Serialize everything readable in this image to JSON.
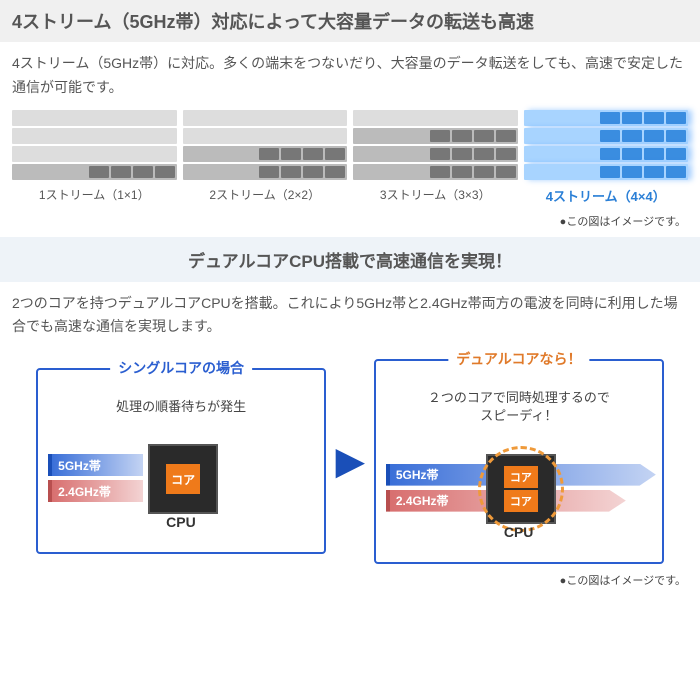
{
  "section1": {
    "title": "4ストリーム（5GHz帯）対応によって大容量データの転送も高速",
    "desc": "4ストリーム（5GHz帯）に対応。多くの端末をつないだり、大容量のデータ転送をしても、高速で安定した通信が可能です。",
    "streams": [
      {
        "label": "1ストリーム（1×1）",
        "lanes": 4,
        "active": 1,
        "trucks_per_lane": 4,
        "highlight": false
      },
      {
        "label": "2ストリーム（2×2）",
        "lanes": 4,
        "active": 2,
        "trucks_per_lane": 4,
        "highlight": false
      },
      {
        "label": "3ストリーム（3×3）",
        "lanes": 4,
        "active": 3,
        "trucks_per_lane": 4,
        "highlight": false
      },
      {
        "label": "4ストリーム（4×4）",
        "lanes": 4,
        "active": 4,
        "trucks_per_lane": 4,
        "highlight": true
      }
    ],
    "caption": "●この図はイメージです。",
    "colors": {
      "lane_inactive": "#ddd",
      "lane_active": "#bbb",
      "truck": "#777",
      "hl_lane": "#a8d4ff",
      "hl_truck": "#3a8de0",
      "hl_label": "#2a7fd6"
    }
  },
  "section2": {
    "title": "デュアルコアCPU搭載で高速通信を実現！",
    "desc": "2つのコアを持つデュアルコアCPUを搭載。これにより5GHz帯と2.4GHz帯両方の電波を同時に利用した場合でも高速な通信を実現します。",
    "single": {
      "title": "シングルコアの場合",
      "subtitle": "処理の順番待ちが発生",
      "band5": "5GHz帯",
      "band24": "2.4GHz帯",
      "core_label": "コア",
      "cpu_label": "CPU"
    },
    "dual": {
      "title": "デュアルコアなら！",
      "subtitle": "２つのコアで同時処理するので\nスピーディ！",
      "band5": "5GHz帯",
      "band24": "2.4GHz帯",
      "core_label": "コア",
      "cpu_label": "CPU"
    },
    "caption": "●この図はイメージです。",
    "colors": {
      "border_single": "#2a5ed0",
      "title_single": "#2a5ed0",
      "title_dual": "#e07a2a",
      "band_blue": "#3a6fd8",
      "band_blue_border": "#1a4fb8",
      "band_red": "#d86f6f",
      "band_red_border": "#b84f4f",
      "chip": "#2a2a2a",
      "core": "#ef7a1a",
      "dash": "#ef9a3a",
      "arrow": "#1a4fb8"
    }
  }
}
